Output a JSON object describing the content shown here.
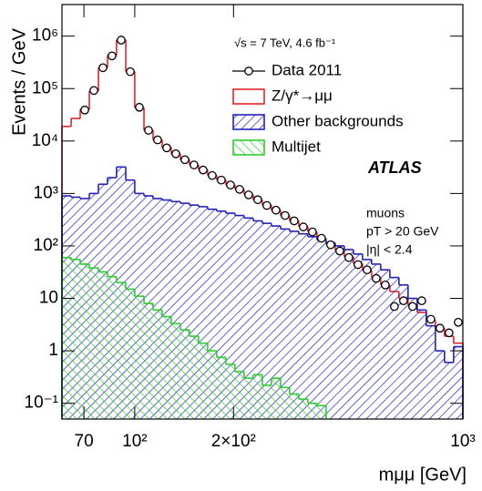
{
  "chart_data": {
    "type": "histogram",
    "ylabel": "Events / GeV",
    "xlabel": "mμμ [GeV]",
    "annotations": [
      "√s = 7 TeV, 4.6 fb⁻¹",
      "ATLAS",
      "muons",
      "pT > 20 GeV",
      "|η| < 2.4"
    ],
    "log_x": true,
    "log_y": true,
    "legend": "upper right",
    "xlim": [
      60,
      1000
    ],
    "ylim": [
      0.05,
      4000000
    ],
    "xticks": [
      70,
      {
        "value": 100,
        "label": "10²"
      },
      {
        "value": 200,
        "label": "2×10²"
      },
      {
        "value": 1000,
        "label": "10³"
      }
    ],
    "yticks": [
      {
        "value": 0.1,
        "label": "10⁻¹"
      },
      1,
      10,
      {
        "value": 100,
        "label": "10²"
      },
      {
        "value": 1000,
        "label": "10³"
      },
      {
        "value": 10000,
        "label": "10⁴"
      },
      {
        "value": 100000,
        "label": "10⁵"
      },
      {
        "value": 1000000,
        "label": "10⁶"
      }
    ],
    "bins": [
      60,
      64,
      68.2,
      72.7,
      77.5,
      82.6,
      88,
      93.9,
      100,
      106.7,
      113.7,
      121.2,
      129.2,
      137.7,
      146.8,
      156.5,
      166.8,
      177.8,
      189.6,
      202.1,
      215.4,
      229.6,
      244.8,
      260.9,
      278.2,
      296.5,
      316.1,
      337,
      359.2,
      382.9,
      408.2,
      435.2,
      463.9,
      494.5,
      527.2,
      561.9,
      599,
      638.6,
      680.7,
      725.7,
      773.6,
      824.6,
      879.1,
      937.1,
      1000
    ],
    "series": [
      {
        "name": "Data 2011",
        "color": "#000000",
        "style": "points",
        "values": [
          null,
          null,
          39000,
          92000,
          250000,
          420000,
          840000,
          210000,
          44000,
          16000,
          10500,
          7400,
          5700,
          4400,
          3500,
          2800,
          2200,
          1800,
          1450,
          1200,
          940,
          760,
          590,
          480,
          380,
          300,
          230,
          185,
          140,
          105,
          80,
          60,
          44,
          35,
          24,
          18,
          7,
          9,
          7,
          9,
          4,
          2.7,
          2.2,
          3.5
        ]
      },
      {
        "name": "Z/γ*→μμ",
        "color": "#e8232a",
        "style": "outline",
        "values": [
          19000,
          27000,
          40000,
          90000,
          250000,
          430000,
          850000,
          210000,
          43000,
          16000,
          10500,
          7500,
          5700,
          4400,
          3500,
          2800,
          2200,
          1800,
          1450,
          1200,
          950,
          760,
          600,
          480,
          380,
          300,
          235,
          185,
          140,
          108,
          82,
          62,
          46,
          34,
          25,
          18,
          13.5,
          10,
          7.5,
          5.4,
          3.8,
          2.7,
          1.9,
          1.4
        ]
      },
      {
        "name": "Other backgrounds",
        "color": "#2323b8",
        "style": "hatch-up",
        "values": [
          900,
          850,
          800,
          1000,
          1500,
          2000,
          3200,
          1800,
          1000,
          900,
          800,
          750,
          700,
          650,
          600,
          560,
          500,
          460,
          420,
          380,
          340,
          300,
          270,
          240,
          210,
          190,
          170,
          150,
          130,
          115,
          100,
          85,
          70,
          55,
          45,
          35,
          25,
          18,
          10,
          6,
          3,
          1,
          0.6,
          1.2
        ]
      },
      {
        "name": "Multijet",
        "color": "#2ecc2e",
        "style": "hatch-down",
        "values": [
          60,
          55,
          45,
          38,
          32,
          26,
          20,
          15,
          11,
          8,
          6,
          4.5,
          3.3,
          2.5,
          1.9,
          1.4,
          1,
          0.75,
          0.55,
          0.4,
          0.3,
          0.35,
          0.22,
          0.3,
          0.2,
          0.15,
          0.12,
          0.1,
          0.09,
          null,
          null,
          null,
          null,
          null,
          null,
          null,
          null,
          null,
          null,
          null,
          null,
          null,
          null,
          null
        ]
      }
    ]
  }
}
